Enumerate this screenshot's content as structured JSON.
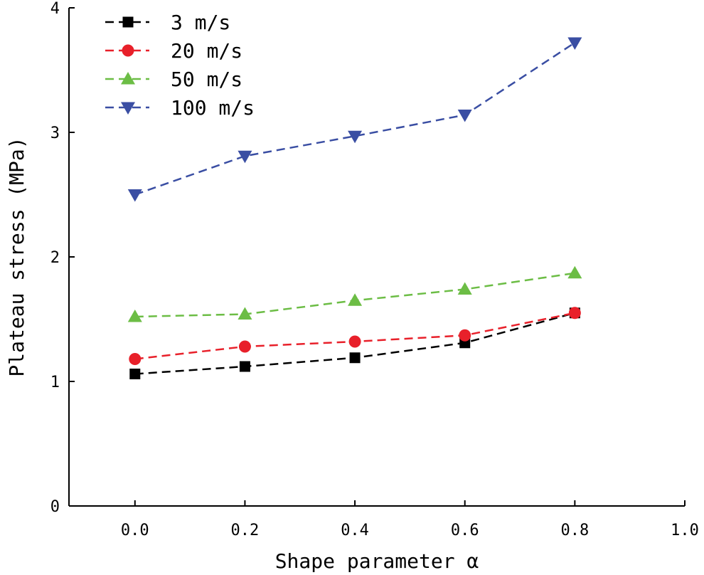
{
  "chart_data": {
    "type": "line",
    "xlabel": "Shape parameter α",
    "ylabel": "Plateau stress (MPa)",
    "xlim": [
      -0.12,
      1.0
    ],
    "ylim": [
      0,
      4
    ],
    "xticks": [
      0.0,
      0.2,
      0.4,
      0.6,
      0.8,
      1.0
    ],
    "xtick_labels": [
      "0.0",
      "0.2",
      "0.4",
      "0.6",
      "0.8",
      "1.0"
    ],
    "yticks": [
      0,
      1,
      2,
      3,
      4
    ],
    "ytick_labels": [
      "0",
      "1",
      "2",
      "3",
      "4"
    ],
    "grid": false,
    "legend_position": "top-left",
    "x": [
      0.0,
      0.2,
      0.4,
      0.6,
      0.8
    ],
    "series": [
      {
        "name": "3 m/s",
        "values": [
          1.06,
          1.12,
          1.19,
          1.31,
          1.55
        ],
        "color": "#000000",
        "marker": "square"
      },
      {
        "name": "20 m/s",
        "values": [
          1.18,
          1.28,
          1.32,
          1.37,
          1.55
        ],
        "color": "#e8202a",
        "marker": "circle"
      },
      {
        "name": "50 m/s",
        "values": [
          1.52,
          1.54,
          1.65,
          1.74,
          1.87
        ],
        "color": "#6cbd45",
        "marker": "triangle-up"
      },
      {
        "name": "100 m/s",
        "values": [
          2.5,
          2.81,
          2.97,
          3.14,
          3.72
        ],
        "color": "#3a4ea3",
        "marker": "triangle-down"
      }
    ]
  }
}
